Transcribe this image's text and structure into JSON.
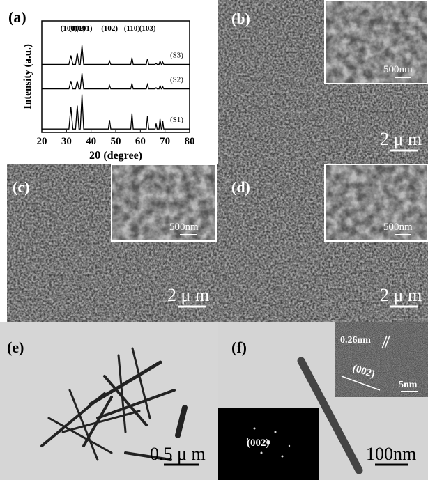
{
  "chart_data": {
    "type": "line",
    "panel_label": "(a)",
    "xlabel": "2θ (degree)",
    "ylabel": "Intensity (a.u.)",
    "x": [
      20,
      31.0,
      31.8,
      32.6,
      33.7,
      34.4,
      35.1,
      35.6,
      36.3,
      37.0,
      47.0,
      47.5,
      48.0,
      56.1,
      56.6,
      57.1,
      62.4,
      62.9,
      63.4,
      66.0,
      66.4,
      66.8,
      67.6,
      68.0,
      68.5,
      68.8,
      69.1,
      69.5,
      80
    ],
    "series": [
      {
        "name": "(S1)",
        "color": "#000000",
        "values": [
          3,
          3,
          23,
          3,
          3,
          24,
          3,
          3,
          34,
          3,
          3,
          11,
          3,
          3,
          17,
          3,
          3,
          15,
          3,
          3,
          8,
          3,
          3,
          12,
          3,
          3,
          10,
          3,
          3
        ]
      },
      {
        "name": "(S2)",
        "color": "#000000",
        "values": [
          39,
          39,
          46,
          39,
          39,
          46,
          39,
          39,
          53,
          39,
          39,
          42,
          39,
          39,
          44,
          39,
          39,
          43,
          39,
          39,
          40,
          39,
          39,
          42,
          39,
          39,
          41,
          39,
          39
        ]
      },
      {
        "name": "(S3)",
        "color": "#000000",
        "values": [
          61,
          61,
          69,
          61,
          61,
          71,
          61,
          61,
          78,
          61,
          61,
          64,
          61,
          61,
          67,
          61,
          61,
          66,
          61,
          61,
          62,
          61,
          61,
          64,
          61,
          61,
          63,
          61,
          61
        ]
      }
    ],
    "xlim": [
      20,
      80
    ],
    "ylim": [
      0,
      100
    ],
    "xticks": [
      20,
      30,
      40,
      50,
      60,
      70,
      80
    ],
    "annotations": [
      {
        "text": "(100)",
        "x": 31.8
      },
      {
        "text": "(002)",
        "x": 34.4
      },
      {
        "text": "(101)",
        "x": 36.3
      },
      {
        "text": "(102)",
        "x": 47.5
      },
      {
        "text": "(110)",
        "x": 56.6
      },
      {
        "text": "(103)",
        "x": 62.9
      }
    ]
  },
  "panels": [
    {
      "label": "(b)",
      "scale_bar": "2 μ m",
      "inset_scale_bar": "500nm"
    },
    {
      "label": "(c)",
      "scale_bar": "2 μ m",
      "inset_scale_bar": "500nm"
    },
    {
      "label": "(d)",
      "scale_bar": "2 μ m",
      "inset_scale_bar": "500nm"
    },
    {
      "label": "(e)",
      "scale_bar": "0.5 μ m"
    },
    {
      "label": "(f)",
      "scale_bar": "100nm",
      "hrtem_spacing": "0.26nm",
      "hrtem_plane": "(002)",
      "hrtem_scale_bar": "5nm",
      "saed_plane": "(002)"
    }
  ]
}
